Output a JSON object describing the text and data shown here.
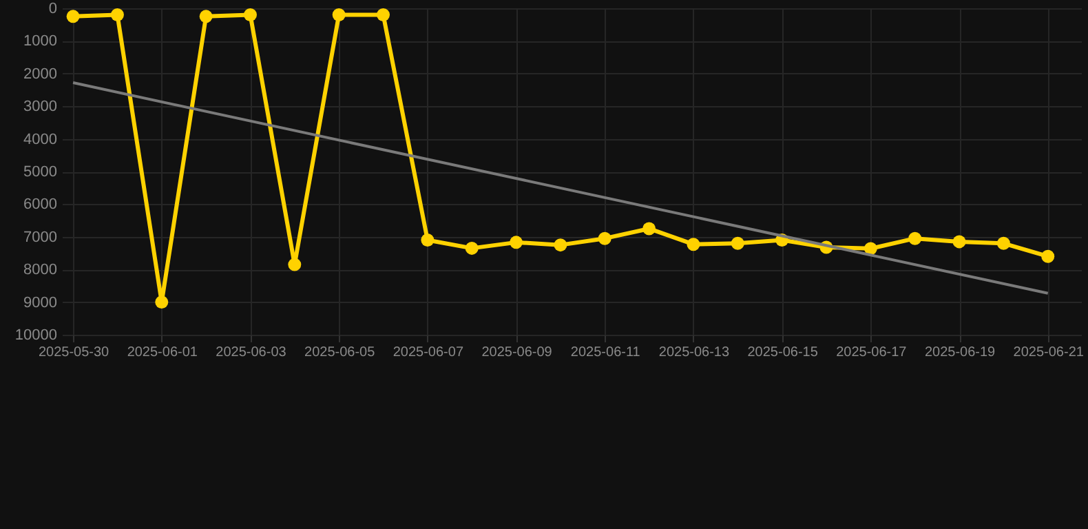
{
  "chart_data": {
    "type": "line",
    "x": [
      "2025-05-30",
      "2025-05-31",
      "2025-06-01",
      "2025-06-02",
      "2025-06-03",
      "2025-06-04",
      "2025-06-05",
      "2025-06-06",
      "2025-06-07",
      "2025-06-08",
      "2025-06-09",
      "2025-06-10",
      "2025-06-11",
      "2025-06-12",
      "2025-06-13",
      "2025-06-14",
      "2025-06-15",
      "2025-06-16",
      "2025-06-17",
      "2025-06-18",
      "2025-06-19",
      "2025-06-20",
      "2025-06-21"
    ],
    "series": [
      {
        "color": "#ffd200",
        "values": [
          250,
          200,
          9000,
          250,
          200,
          7850,
          200,
          200,
          7100,
          7350,
          7170,
          7250,
          7050,
          6750,
          7230,
          7200,
          7100,
          7320,
          7360,
          7050,
          7150,
          7200,
          7600
        ]
      },
      {
        "type": "line",
        "color": "#7a7a7a",
        "marker": "none",
        "x": [
          "2025-05-30",
          "2025-06-21"
        ],
        "values": [
          2280,
          8730
        ]
      }
    ],
    "xlim": [
      "2025-05-29T18:00",
      "2025-06-21T18:00"
    ],
    "xticks": [
      "2025-05-30",
      "2025-06-01",
      "2025-06-03",
      "2025-06-05",
      "2025-06-07",
      "2025-06-09",
      "2025-06-11",
      "2025-06-13",
      "2025-06-15",
      "2025-06-17",
      "2025-06-19",
      "2025-06-21"
    ],
    "ylim": [
      10000,
      0
    ],
    "yticks": [
      0,
      1000,
      2000,
      3000,
      4000,
      5000,
      6000,
      7000,
      8000,
      9000,
      10000
    ],
    "grid": true,
    "marker": "circle",
    "line_style": "solid"
  }
}
